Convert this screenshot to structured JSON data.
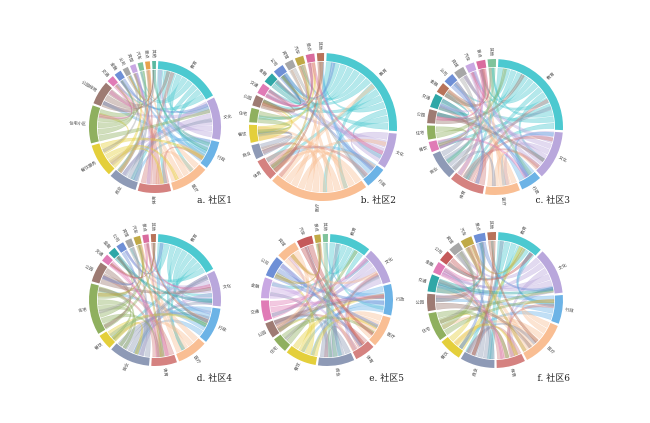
{
  "chart_data": [
    {
      "type": "chord",
      "caption": "a. 社区1",
      "segments": [
        {
          "label": "教育",
          "value": 14,
          "color": "#4CC9D0"
        },
        {
          "label": "文化",
          "value": 9,
          "color": "#B9A7DC"
        },
        {
          "label": "行政",
          "value": 6,
          "color": "#6CB3E6"
        },
        {
          "label": "医疗",
          "value": 8,
          "color": "#F9BE93"
        },
        {
          "label": "体育",
          "value": 7,
          "color": "#D58280"
        },
        {
          "label": "商业",
          "value": 6,
          "color": "#8E9AB6"
        },
        {
          "label": "餐饮服务",
          "value": 7,
          "color": "#E4CF3B"
        },
        {
          "label": "住宅小区",
          "value": 8,
          "color": "#8FB05F"
        },
        {
          "label": "公园绿地",
          "value": 5,
          "color": "#9E7B73"
        },
        {
          "label": "交通",
          "value": 1.5,
          "color": "#E07BB6"
        },
        {
          "label": "金融",
          "value": 1.5,
          "color": "#6E8FD6"
        },
        {
          "label": "公司",
          "value": 1.2,
          "color": "#A7A7A7"
        },
        {
          "label": "宾馆",
          "value": 1.2,
          "color": "#C9A8E3"
        },
        {
          "label": "汽车",
          "value": 1.1,
          "color": "#7FC39B"
        },
        {
          "label": "景点",
          "value": 1.0,
          "color": "#E8A14C"
        },
        {
          "label": "其他",
          "value": 0.8,
          "color": "#5AB9A0"
        }
      ]
    },
    {
      "type": "chord",
      "caption": "b. 社区2",
      "segments": [
        {
          "label": "教育",
          "value": 16,
          "color": "#4CC9D0"
        },
        {
          "label": "文化",
          "value": 5,
          "color": "#B9A7DC"
        },
        {
          "label": "行政",
          "value": 3,
          "color": "#6CB3E6"
        },
        {
          "label": "医疗",
          "value": 14,
          "color": "#F9BE93"
        },
        {
          "label": "体育",
          "value": 3,
          "color": "#D58280"
        },
        {
          "label": "商业",
          "value": 2,
          "color": "#8E9AB6"
        },
        {
          "label": "餐饮",
          "value": 2.5,
          "color": "#E4CF3B"
        },
        {
          "label": "住宅",
          "value": 2,
          "color": "#8FB05F"
        },
        {
          "label": "公园",
          "value": 1.5,
          "color": "#9E7B73"
        },
        {
          "label": "交通",
          "value": 1.5,
          "color": "#E07BB6"
        },
        {
          "label": "金融",
          "value": 1.5,
          "color": "#2FA7A7"
        },
        {
          "label": "公司",
          "value": 1.5,
          "color": "#6E8FD6"
        },
        {
          "label": "宾馆",
          "value": 1.2,
          "color": "#A7A7A7"
        },
        {
          "label": "汽车",
          "value": 1.2,
          "color": "#C0A946"
        },
        {
          "label": "景点",
          "value": 1.2,
          "color": "#D96C9E"
        },
        {
          "label": "其他",
          "value": 1.0,
          "color": "#B8735A"
        }
      ]
    },
    {
      "type": "chord",
      "caption": "c. 社区3",
      "segments": [
        {
          "label": "教育",
          "value": 15,
          "color": "#4CC9D0"
        },
        {
          "label": "文化",
          "value": 7,
          "color": "#B9A7DC"
        },
        {
          "label": "行政",
          "value": 3,
          "color": "#6CB3E6"
        },
        {
          "label": "医疗",
          "value": 5,
          "color": "#F9BE93"
        },
        {
          "label": "体育",
          "value": 5,
          "color": "#D58280"
        },
        {
          "label": "商业",
          "value": 4,
          "color": "#8E9AB6"
        },
        {
          "label": "餐饮",
          "value": 1.5,
          "color": "#E07BB6"
        },
        {
          "label": "住宅",
          "value": 2,
          "color": "#8FB05F"
        },
        {
          "label": "公园",
          "value": 2,
          "color": "#9E7B73"
        },
        {
          "label": "交通",
          "value": 2,
          "color": "#2FA7A7"
        },
        {
          "label": "金融",
          "value": 1.5,
          "color": "#B8735A"
        },
        {
          "label": "公司",
          "value": 1.5,
          "color": "#6E8FD6"
        },
        {
          "label": "宾馆",
          "value": 1.5,
          "color": "#A7A7A7"
        },
        {
          "label": "汽车",
          "value": 1.3,
          "color": "#C9A8E3"
        },
        {
          "label": "景点",
          "value": 1.3,
          "color": "#D96C9E"
        },
        {
          "label": "其他",
          "value": 1.2,
          "color": "#7FC39B"
        }
      ]
    },
    {
      "type": "chord",
      "caption": "d. 社区4",
      "segments": [
        {
          "label": "教育",
          "value": 13,
          "color": "#4CC9D0"
        },
        {
          "label": "文化",
          "value": 7,
          "color": "#B9A7DC"
        },
        {
          "label": "行政",
          "value": 7,
          "color": "#6CB3E6"
        },
        {
          "label": "医疗",
          "value": 6,
          "color": "#F9BE93"
        },
        {
          "label": "体育",
          "value": 5,
          "color": "#D58280"
        },
        {
          "label": "商业",
          "value": 8,
          "color": "#8E9AB6"
        },
        {
          "label": "餐饮",
          "value": 3,
          "color": "#E4CF3B"
        },
        {
          "label": "住宅",
          "value": 10,
          "color": "#8FB05F"
        },
        {
          "label": "公园",
          "value": 4,
          "color": "#9E7B73"
        },
        {
          "label": "交通",
          "value": 1.5,
          "color": "#E07BB6"
        },
        {
          "label": "金融",
          "value": 1.5,
          "color": "#2FA7A7"
        },
        {
          "label": "公司",
          "value": 1.5,
          "color": "#6E8FD6"
        },
        {
          "label": "宾馆",
          "value": 1.3,
          "color": "#A7A7A7"
        },
        {
          "label": "汽车",
          "value": 1.3,
          "color": "#C0A946"
        },
        {
          "label": "景点",
          "value": 1.2,
          "color": "#D96C9E"
        },
        {
          "label": "其他",
          "value": 1.0,
          "color": "#B8735A"
        }
      ]
    },
    {
      "type": "chord",
      "caption": "e. 社区5",
      "segments": [
        {
          "label": "教育",
          "value": 8,
          "color": "#4CC9D0"
        },
        {
          "label": "文化",
          "value": 7,
          "color": "#B9A7DC"
        },
        {
          "label": "行政",
          "value": 6,
          "color": "#6CB3E6"
        },
        {
          "label": "医疗",
          "value": 6,
          "color": "#F9BE93"
        },
        {
          "label": "体育",
          "value": 4,
          "color": "#D58280"
        },
        {
          "label": "商业",
          "value": 7,
          "color": "#8E9AB6"
        },
        {
          "label": "餐饮",
          "value": 6,
          "color": "#E4CF3B"
        },
        {
          "label": "住宅",
          "value": 3,
          "color": "#8FB05F"
        },
        {
          "label": "公园",
          "value": 3,
          "color": "#9E7B73"
        },
        {
          "label": "交通",
          "value": 4,
          "color": "#E07BB6"
        },
        {
          "label": "金融",
          "value": 4,
          "color": "#C9A8E3"
        },
        {
          "label": "公司",
          "value": 4,
          "color": "#6E8FD6"
        },
        {
          "label": "宾馆",
          "value": 4,
          "color": "#F9BE93"
        },
        {
          "label": "汽车",
          "value": 3,
          "color": "#C55A5A"
        },
        {
          "label": "景点",
          "value": 1.2,
          "color": "#C0A946"
        },
        {
          "label": "其他",
          "value": 1.0,
          "color": "#7FC39B"
        }
      ]
    },
    {
      "type": "chord",
      "caption": "f. 社区6",
      "segments": [
        {
          "label": "教育",
          "value": 8,
          "color": "#4CC9D0"
        },
        {
          "label": "文化",
          "value": 8,
          "color": "#B9A7DC"
        },
        {
          "label": "行政",
          "value": 5,
          "color": "#6CB3E6"
        },
        {
          "label": "医疗",
          "value": 8,
          "color": "#F9BE93"
        },
        {
          "label": "体育",
          "value": 5,
          "color": "#D58280"
        },
        {
          "label": "商业",
          "value": 6,
          "color": "#8E9AB6"
        },
        {
          "label": "餐饮",
          "value": 4,
          "color": "#E4CF3B"
        },
        {
          "label": "住宅",
          "value": 5,
          "color": "#8FB05F"
        },
        {
          "label": "公园",
          "value": 3,
          "color": "#9E7B73"
        },
        {
          "label": "交通",
          "value": 3,
          "color": "#2FA7A7"
        },
        {
          "label": "金融",
          "value": 2,
          "color": "#E07BB6"
        },
        {
          "label": "公司",
          "value": 2,
          "color": "#C55A5A"
        },
        {
          "label": "宾馆",
          "value": 2,
          "color": "#A7A7A7"
        },
        {
          "label": "汽车",
          "value": 2,
          "color": "#C0A946"
        },
        {
          "label": "景点",
          "value": 2,
          "color": "#6E8FD6"
        },
        {
          "label": "其他",
          "value": 1.5,
          "color": "#B8735A"
        }
      ]
    }
  ]
}
